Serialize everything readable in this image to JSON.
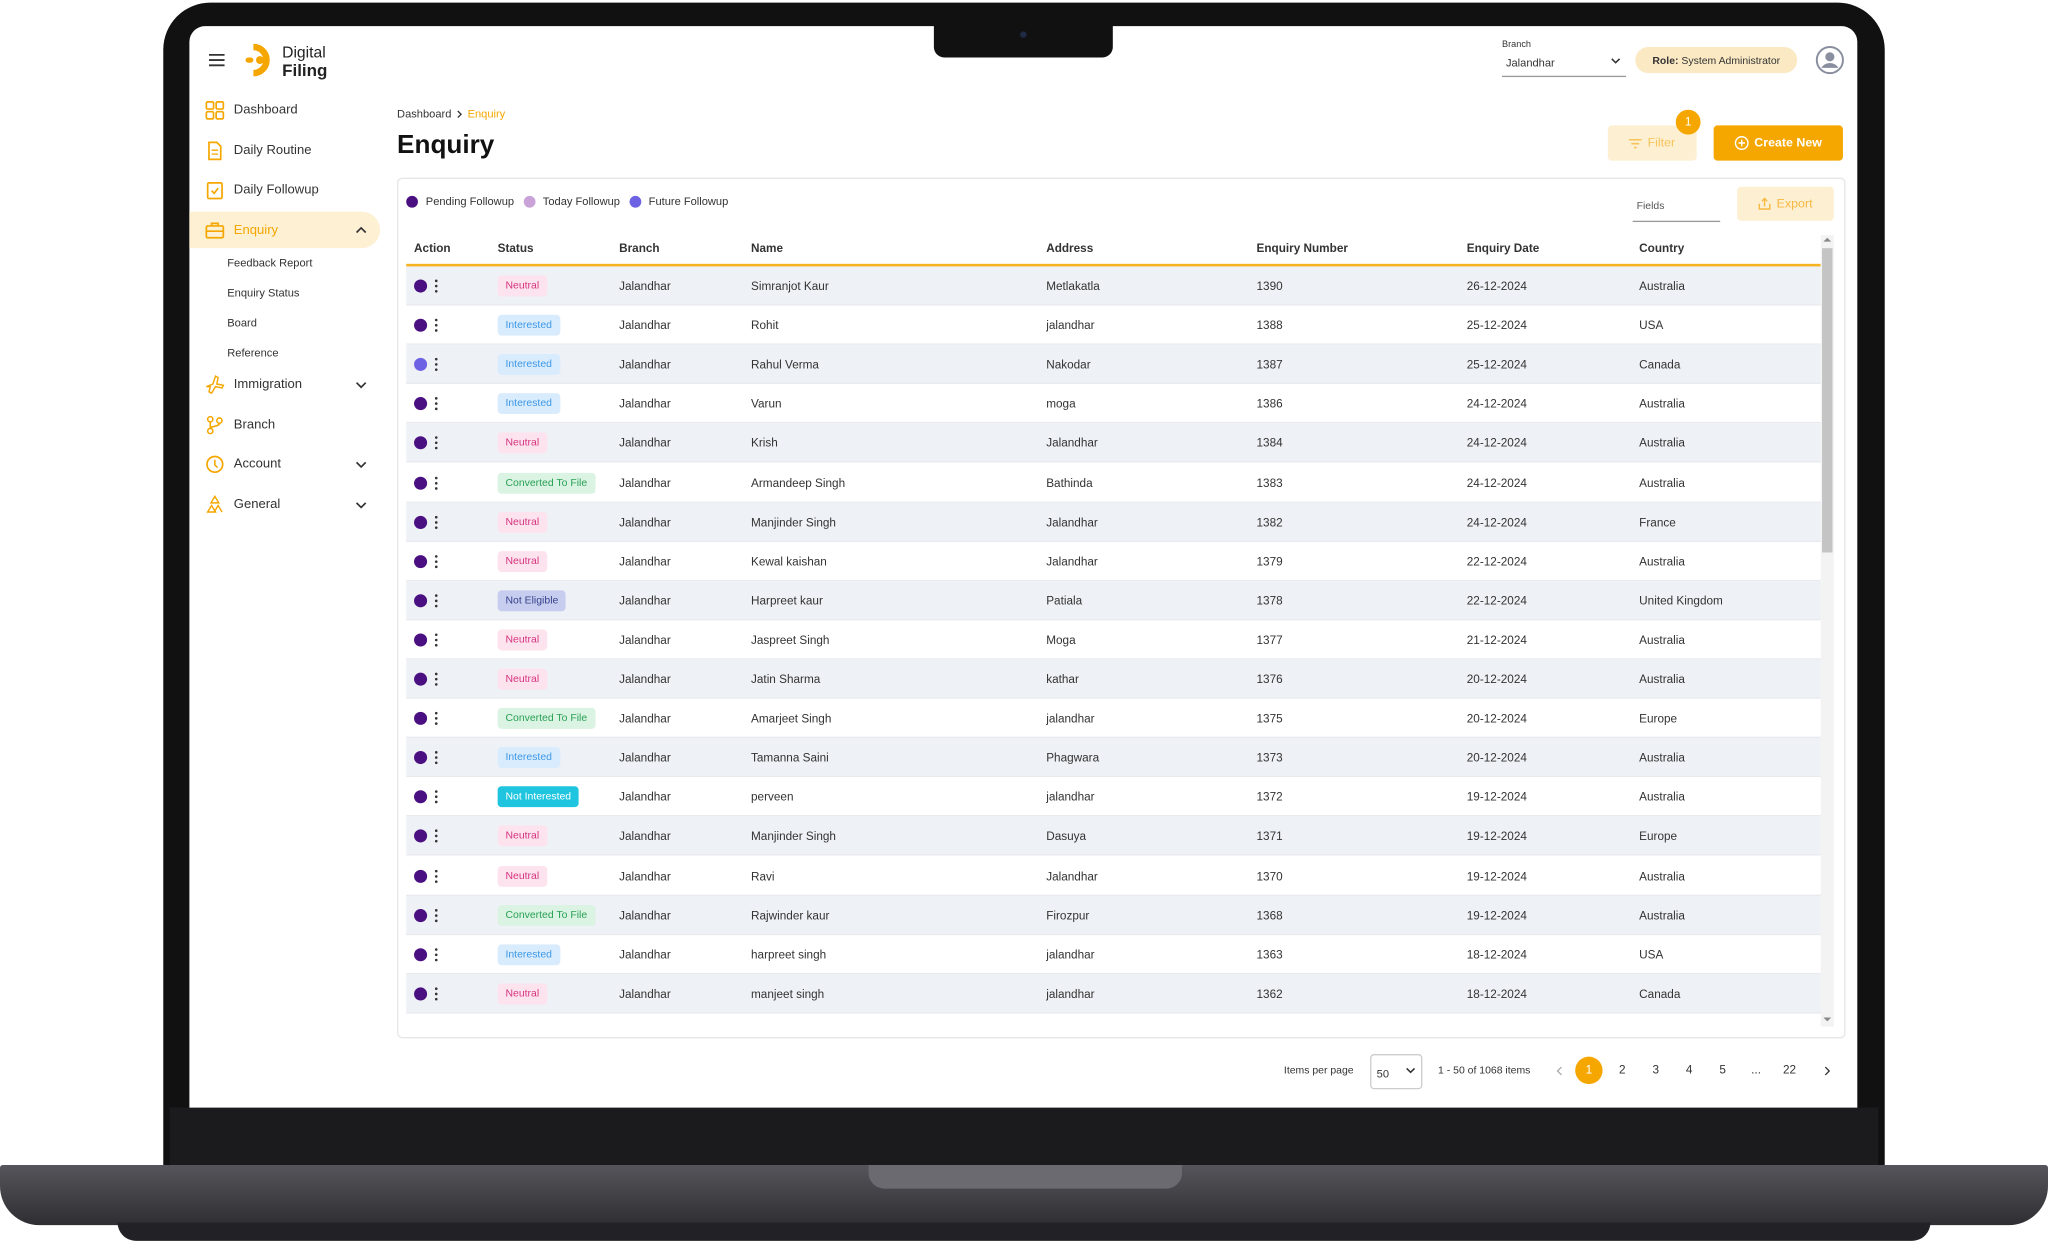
{
  "header": {
    "logo_top": "Digital",
    "logo_bottom": "Filing",
    "branch_label": "Branch",
    "branch_value": "Jalandhar",
    "role_label": "Role:",
    "role": "System Administrator"
  },
  "sidebar": {
    "items": [
      {
        "label": "Dashboard"
      },
      {
        "label": "Daily Routine"
      },
      {
        "label": "Daily Followup"
      },
      {
        "label": "Enquiry",
        "children": [
          "Feedback Report",
          "Enquiry Status",
          "Board",
          "Reference"
        ]
      },
      {
        "label": "Immigration"
      },
      {
        "label": "Branch"
      },
      {
        "label": "Account"
      },
      {
        "label": "General"
      }
    ]
  },
  "breadcrumb": [
    "Dashboard",
    "Enquiry"
  ],
  "page_title": "Enquiry",
  "toolbar": {
    "filter": "Filter",
    "filter_count": 1,
    "create": "Create New",
    "fields": "Fields",
    "export": "Export"
  },
  "legend": [
    {
      "label": "Pending Followup",
      "color": "#4a0f80"
    },
    {
      "label": "Today Followup",
      "color": "#c9a3d8"
    },
    {
      "label": "Future Followup",
      "color": "#6e62e4"
    }
  ],
  "table": {
    "columns": [
      "Action",
      "Status",
      "Branch",
      "Name",
      "Address",
      "Enquiry Number",
      "Enquiry Date",
      "Country"
    ],
    "status_styles": {
      "Neutral": {
        "bg": "#fde3ee",
        "fg": "#d6337f"
      },
      "Interested": {
        "bg": "#d9ecfd",
        "fg": "#3d97e6"
      },
      "Converted To File": {
        "bg": "#daf3e2",
        "fg": "#28a055"
      },
      "Not Eligible": {
        "bg": "#c6cdef",
        "fg": "#37428a"
      },
      "Not Interested": {
        "bg": "#1fc5df",
        "fg": "#ffffff"
      }
    },
    "rows": [
      {
        "dot": "#4a0f80",
        "cells": [
          "Neutral",
          "Jalandhar",
          "Simranjot Kaur",
          "Metlakatla",
          1390,
          "26-12-2024",
          "Australia"
        ]
      },
      {
        "dot": "#4a0f80",
        "cells": [
          "Interested",
          "Jalandhar",
          "Rohit",
          "jalandhar",
          1388,
          "25-12-2024",
          "USA"
        ]
      },
      {
        "dot": "#6e62e4",
        "cells": [
          "Interested",
          "Jalandhar",
          "Rahul Verma",
          "Nakodar",
          1387,
          "25-12-2024",
          "Canada"
        ]
      },
      {
        "dot": "#4a0f80",
        "cells": [
          "Interested",
          "Jalandhar",
          "Varun",
          "moga",
          1386,
          "24-12-2024",
          "Australia"
        ]
      },
      {
        "dot": "#4a0f80",
        "cells": [
          "Neutral",
          "Jalandhar",
          "Krish",
          "Jalandhar",
          1384,
          "24-12-2024",
          "Australia"
        ]
      },
      {
        "dot": "#4a0f80",
        "cells": [
          "Converted To File",
          "Jalandhar",
          "Armandeep Singh",
          "Bathinda",
          1383,
          "24-12-2024",
          "Australia"
        ]
      },
      {
        "dot": "#4a0f80",
        "cells": [
          "Neutral",
          "Jalandhar",
          "Manjinder Singh",
          "Jalandhar",
          1382,
          "24-12-2024",
          "France"
        ]
      },
      {
        "dot": "#4a0f80",
        "cells": [
          "Neutral",
          "Jalandhar",
          "Kewal kaishan",
          "Jalandhar",
          1379,
          "22-12-2024",
          "Australia"
        ]
      },
      {
        "dot": "#4a0f80",
        "cells": [
          "Not Eligible",
          "Jalandhar",
          "Harpreet kaur",
          "Patiala",
          1378,
          "22-12-2024",
          "United Kingdom"
        ]
      },
      {
        "dot": "#4a0f80",
        "cells": [
          "Neutral",
          "Jalandhar",
          "Jaspreet Singh",
          "Moga",
          1377,
          "21-12-2024",
          "Australia"
        ]
      },
      {
        "dot": "#4a0f80",
        "cells": [
          "Neutral",
          "Jalandhar",
          "Jatin Sharma",
          "kathar",
          1376,
          "20-12-2024",
          "Australia"
        ]
      },
      {
        "dot": "#4a0f80",
        "cells": [
          "Converted To File",
          "Jalandhar",
          "Amarjeet Singh",
          "jalandhar",
          1375,
          "20-12-2024",
          "Europe"
        ]
      },
      {
        "dot": "#4a0f80",
        "cells": [
          "Interested",
          "Jalandhar",
          "Tamanna Saini",
          "Phagwara",
          1373,
          "20-12-2024",
          "Australia"
        ]
      },
      {
        "dot": "#4a0f80",
        "cells": [
          "Not Interested",
          "Jalandhar",
          "perveen",
          "jalandhar",
          1372,
          "19-12-2024",
          "Australia"
        ]
      },
      {
        "dot": "#4a0f80",
        "cells": [
          "Neutral",
          "Jalandhar",
          "Manjinder Singh",
          "Dasuya",
          1371,
          "19-12-2024",
          "Europe"
        ]
      },
      {
        "dot": "#4a0f80",
        "cells": [
          "Neutral",
          "Jalandhar",
          "Ravi",
          "Jalandhar",
          1370,
          "19-12-2024",
          "Australia"
        ]
      },
      {
        "dot": "#4a0f80",
        "cells": [
          "Converted To File",
          "Jalandhar",
          "Rajwinder kaur",
          "Firozpur",
          1368,
          "19-12-2024",
          "Australia"
        ]
      },
      {
        "dot": "#4a0f80",
        "cells": [
          "Interested",
          "Jalandhar",
          "harpreet singh",
          "jalandhar",
          1363,
          "18-12-2024",
          "USA"
        ]
      },
      {
        "dot": "#4a0f80",
        "cells": [
          "Neutral",
          "Jalandhar",
          "manjeet singh",
          "jalandhar",
          1362,
          "18-12-2024",
          "Canada"
        ]
      }
    ]
  },
  "pagination": {
    "per_page_label": "Items per page",
    "per_page": 50,
    "summary": "1 - 50 of 1068 items",
    "pages": [
      1,
      2,
      3,
      4,
      5,
      "...",
      22
    ]
  }
}
